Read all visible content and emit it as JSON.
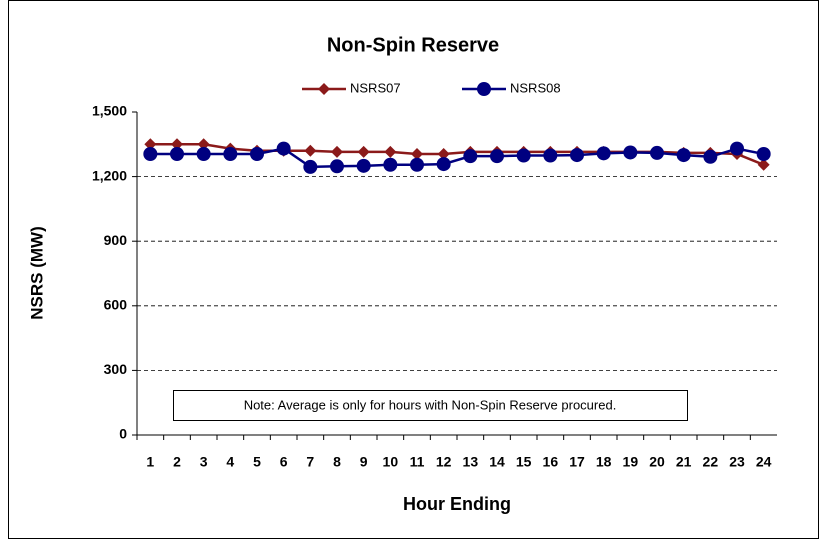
{
  "chart_data": {
    "type": "line",
    "title": "Non-Spin Reserve",
    "x_label": "Hour Ending",
    "y_label": "NSRS (MW)",
    "annotation": "Note: Average is only for hours with Non-Spin Reserve procured.",
    "categories": [
      "1",
      "2",
      "3",
      "4",
      "5",
      "6",
      "7",
      "8",
      "9",
      "10",
      "11",
      "12",
      "13",
      "14",
      "15",
      "16",
      "17",
      "18",
      "19",
      "20",
      "21",
      "22",
      "23",
      "24"
    ],
    "series": [
      {
        "name": "NSRS07",
        "color": "#8b1a1a",
        "marker": "diamond",
        "values": [
          1350,
          1350,
          1350,
          1330,
          1320,
          1320,
          1320,
          1315,
          1315,
          1315,
          1305,
          1305,
          1315,
          1315,
          1315,
          1315,
          1315,
          1315,
          1315,
          1315,
          1310,
          1310,
          1305,
          1255
        ]
      },
      {
        "name": "NSRS08",
        "color": "#000080",
        "marker": "circle",
        "values": [
          1305,
          1305,
          1305,
          1305,
          1305,
          1330,
          1245,
          1248,
          1250,
          1255,
          1255,
          1258,
          1295,
          1295,
          1298,
          1298,
          1300,
          1308,
          1312,
          1310,
          1300,
          1292,
          1330,
          1305
        ]
      }
    ],
    "ylim": [
      0,
      1500
    ],
    "yticks": [
      0,
      300,
      600,
      900,
      {
        "value": 1200,
        "label": "1,200"
      },
      {
        "value": 1500,
        "label": "1,500"
      }
    ],
    "grid": true,
    "legend": "top"
  }
}
